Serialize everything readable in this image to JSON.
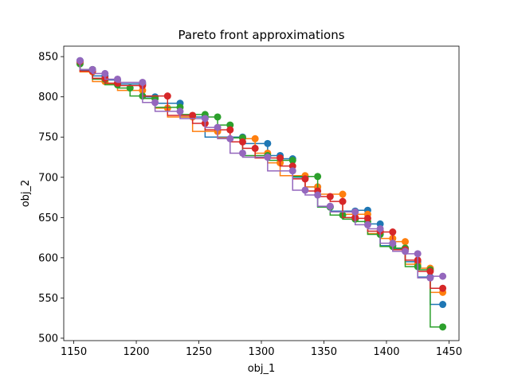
{
  "chart_data": {
    "type": "line",
    "title": "Pareto front approximations",
    "xlabel": "obj_1",
    "ylabel": "obj_2",
    "xlim": [
      1142,
      1458
    ],
    "ylim": [
      497,
      863
    ],
    "xticks": [
      1150,
      1200,
      1250,
      1300,
      1350,
      1400,
      1450
    ],
    "yticks": [
      500,
      550,
      600,
      650,
      700,
      750,
      800,
      850
    ],
    "xtick_labels": [
      "1150",
      "1200",
      "1250",
      "1300",
      "1350",
      "1400",
      "1450"
    ],
    "ytick_labels": [
      "500",
      "550",
      "600",
      "650",
      "700",
      "750",
      "800",
      "850"
    ],
    "grid": false,
    "legend": "none",
    "series": [
      {
        "color": "#1f77b4",
        "points": [
          [
            1155,
            845
          ],
          [
            1165,
            833
          ],
          [
            1175,
            826
          ],
          [
            1185,
            821
          ],
          [
            1205,
            816
          ],
          [
            1215,
            800
          ],
          [
            1235,
            792
          ],
          [
            1255,
            775
          ],
          [
            1285,
            750
          ],
          [
            1305,
            742
          ],
          [
            1315,
            727
          ],
          [
            1325,
            723
          ],
          [
            1335,
            700
          ],
          [
            1345,
            688
          ],
          [
            1355,
            663
          ],
          [
            1375,
            658
          ],
          [
            1385,
            659
          ],
          [
            1395,
            642
          ],
          [
            1405,
            615
          ],
          [
            1415,
            611
          ],
          [
            1425,
            595
          ],
          [
            1435,
            576
          ],
          [
            1445,
            542
          ]
        ]
      },
      {
        "color": "#ff7f0e",
        "points": [
          [
            1155,
            843
          ],
          [
            1165,
            831
          ],
          [
            1175,
            819
          ],
          [
            1185,
            816
          ],
          [
            1205,
            808
          ],
          [
            1215,
            798
          ],
          [
            1225,
            786
          ],
          [
            1245,
            775
          ],
          [
            1265,
            757
          ],
          [
            1285,
            749
          ],
          [
            1295,
            748
          ],
          [
            1305,
            730
          ],
          [
            1315,
            718
          ],
          [
            1335,
            702
          ],
          [
            1345,
            688
          ],
          [
            1365,
            679
          ],
          [
            1385,
            654
          ],
          [
            1395,
            630
          ],
          [
            1405,
            624
          ],
          [
            1415,
            620
          ],
          [
            1425,
            592
          ],
          [
            1435,
            587
          ],
          [
            1445,
            557
          ]
        ]
      },
      {
        "color": "#2ca02c",
        "points": [
          [
            1155,
            841
          ],
          [
            1165,
            834
          ],
          [
            1175,
            822
          ],
          [
            1185,
            815
          ],
          [
            1195,
            811
          ],
          [
            1205,
            801
          ],
          [
            1215,
            798
          ],
          [
            1235,
            787
          ],
          [
            1255,
            778
          ],
          [
            1265,
            775
          ],
          [
            1275,
            765
          ],
          [
            1285,
            749
          ],
          [
            1305,
            727
          ],
          [
            1325,
            721
          ],
          [
            1345,
            701
          ],
          [
            1355,
            663
          ],
          [
            1365,
            653
          ],
          [
            1375,
            648
          ],
          [
            1385,
            645
          ],
          [
            1395,
            629
          ],
          [
            1405,
            614
          ],
          [
            1415,
            612
          ],
          [
            1425,
            589
          ],
          [
            1435,
            585
          ],
          [
            1445,
            514
          ]
        ]
      },
      {
        "color": "#d62728",
        "points": [
          [
            1155,
            844
          ],
          [
            1165,
            832
          ],
          [
            1175,
            823
          ],
          [
            1185,
            817
          ],
          [
            1205,
            814
          ],
          [
            1225,
            801
          ],
          [
            1245,
            777
          ],
          [
            1255,
            767
          ],
          [
            1275,
            759
          ],
          [
            1285,
            744
          ],
          [
            1295,
            736
          ],
          [
            1315,
            724
          ],
          [
            1325,
            714
          ],
          [
            1335,
            698
          ],
          [
            1345,
            683
          ],
          [
            1355,
            676
          ],
          [
            1365,
            670
          ],
          [
            1375,
            650
          ],
          [
            1385,
            649
          ],
          [
            1395,
            633
          ],
          [
            1405,
            632
          ],
          [
            1415,
            610
          ],
          [
            1425,
            597
          ],
          [
            1435,
            583
          ],
          [
            1445,
            562
          ]
        ]
      },
      {
        "color": "#9467bd",
        "points": [
          [
            1155,
            845
          ],
          [
            1165,
            834
          ],
          [
            1175,
            829
          ],
          [
            1185,
            822
          ],
          [
            1205,
            818
          ],
          [
            1215,
            793
          ],
          [
            1235,
            782
          ],
          [
            1255,
            773
          ],
          [
            1265,
            762
          ],
          [
            1275,
            748
          ],
          [
            1285,
            730
          ],
          [
            1305,
            725
          ],
          [
            1325,
            708
          ],
          [
            1335,
            684
          ],
          [
            1345,
            678
          ],
          [
            1355,
            664
          ],
          [
            1375,
            657
          ],
          [
            1385,
            641
          ],
          [
            1395,
            636
          ],
          [
            1405,
            618
          ],
          [
            1415,
            608
          ],
          [
            1425,
            605
          ],
          [
            1435,
            575
          ],
          [
            1445,
            577
          ]
        ]
      }
    ]
  }
}
